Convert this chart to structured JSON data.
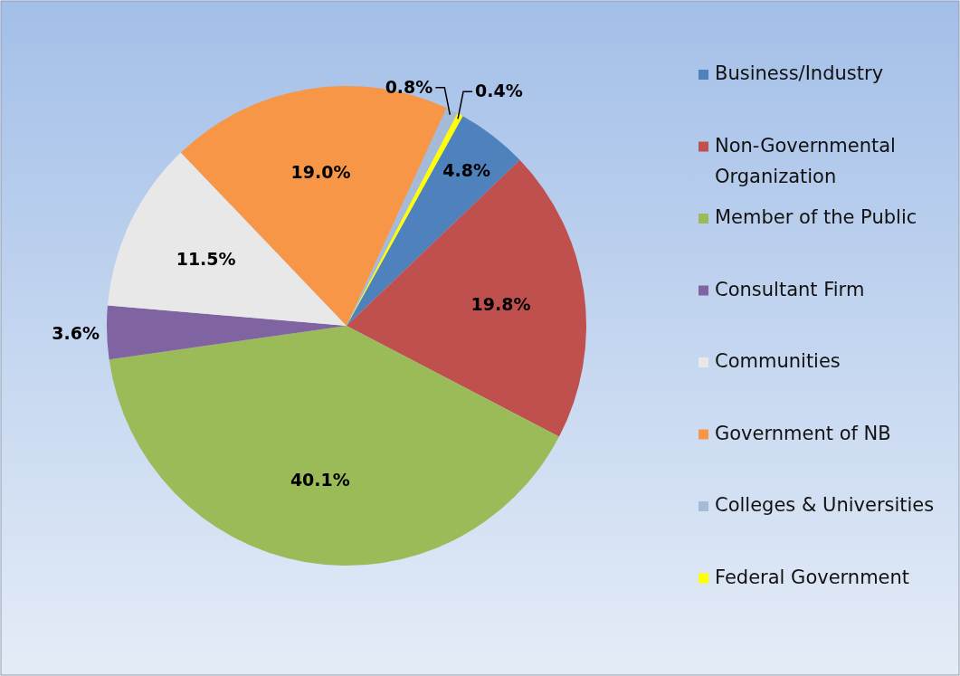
{
  "chart_data": {
    "type": "pie",
    "categories": [
      "Business/Industry",
      "Non-Governmental Organization",
      "Member of the Public",
      "Consultant Firm",
      "Communities",
      "Government of NB",
      "Colleges & Universities",
      "Federal Government"
    ],
    "values": [
      4.8,
      19.8,
      40.1,
      3.6,
      11.5,
      19.0,
      0.8,
      0.4
    ],
    "value_labels": [
      "4.8%",
      "19.8%",
      "40.1%",
      "3.6%",
      "11.5%",
      "19.0%",
      "0.8%",
      "0.4%"
    ],
    "colors": [
      "#4f81bd",
      "#c0504d",
      "#9bbb59",
      "#8064a2",
      "#e8e8e8",
      "#f79646",
      "#a5b9d9",
      "#ffff00"
    ],
    "legend": "right"
  }
}
